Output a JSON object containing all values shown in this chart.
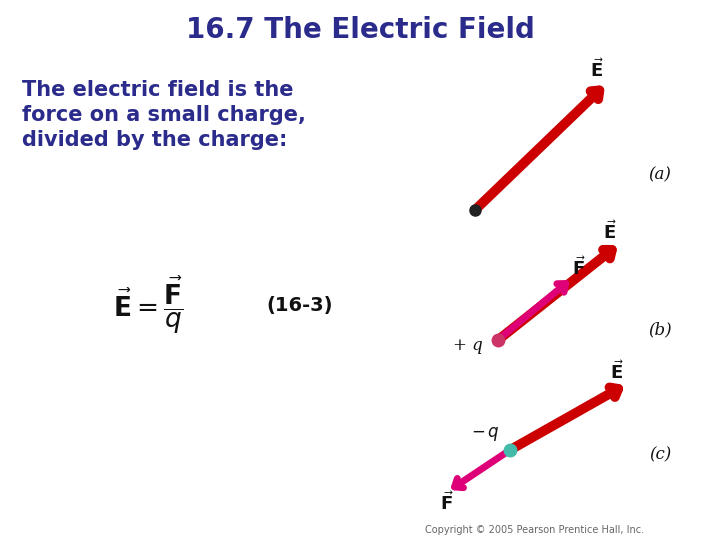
{
  "title": "16.7 The Electric Field",
  "title_color": "#2b2b8c",
  "title_fontsize": 20,
  "bg_color": "#ffffff",
  "text_color": "#2b2b8c",
  "body_text_lines": [
    "The electric field is the",
    "force on a small charge,",
    "divided by the charge:"
  ],
  "body_fontsize": 15,
  "eq_label": "(16-3)",
  "copyright": "Copyright © 2005 Pearson Prentice Hall, Inc.",
  "arrow_E_color": "#cc0000",
  "arrow_F_color": "#dd0077",
  "dot_a_color": "#222222",
  "dot_b_color": "#cc3366",
  "dot_c_color": "#44bbaa",
  "label_a": "(a)",
  "label_b": "(b)",
  "label_c": "(c)",
  "charge_b_label": "+ q",
  "charge_c_label": "− q",
  "fig_width": 7.2,
  "fig_height": 5.4,
  "dpi": 100
}
